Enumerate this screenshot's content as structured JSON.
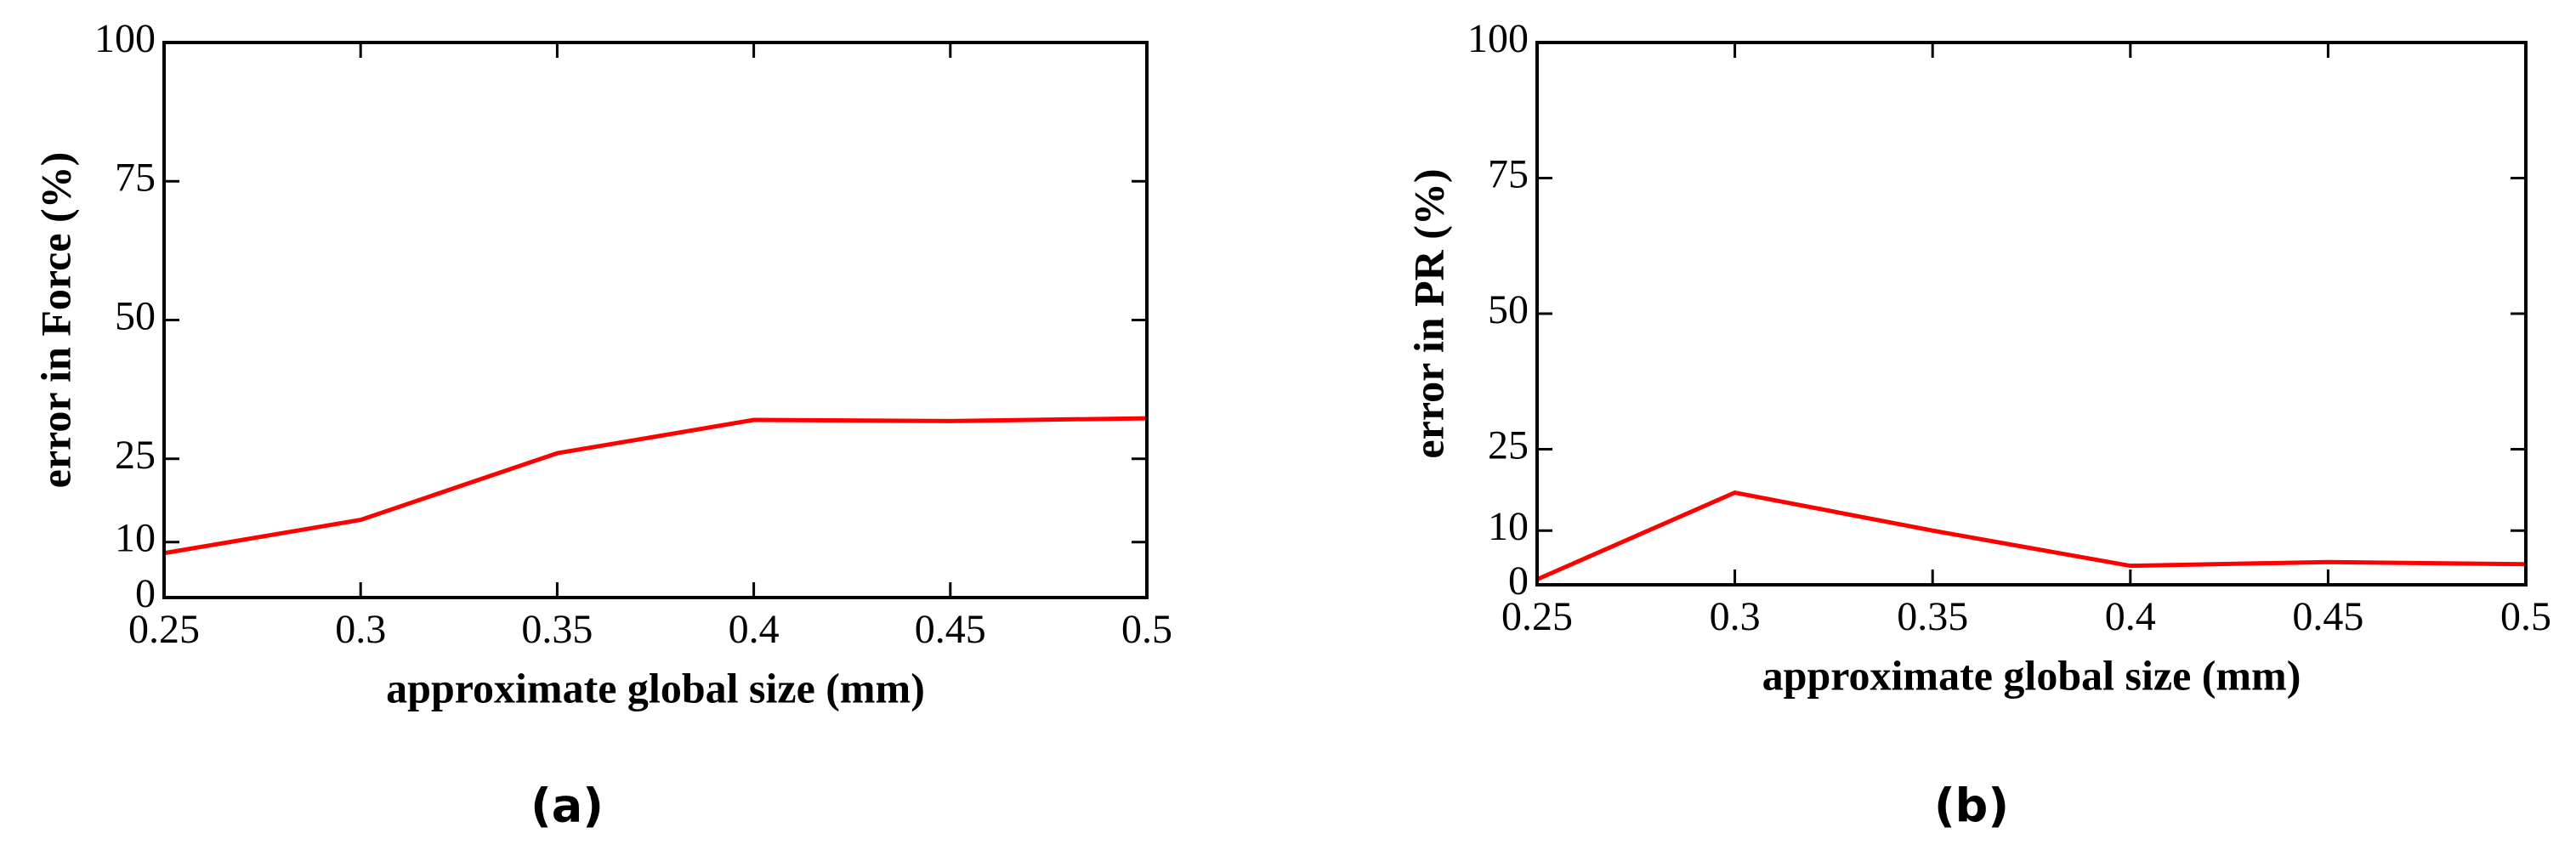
{
  "chart_data": [
    {
      "type": "line",
      "caption": "(a)",
      "xlabel": "approximate global size (mm)",
      "ylabel": "error in Force (%)",
      "x": [
        0.25,
        0.3,
        0.35,
        0.4,
        0.45,
        0.5
      ],
      "series": [
        {
          "color": "#ff0000",
          "values": [
            8,
            14,
            26,
            32,
            31.8,
            32.3
          ]
        }
      ],
      "xlim": [
        0.25,
        0.5
      ],
      "xticks": [
        0.25,
        0.3,
        0.35,
        0.4,
        0.45,
        0.5
      ],
      "ylim": [
        0,
        100
      ],
      "yticks": [
        0,
        10,
        25,
        50,
        75,
        100
      ]
    },
    {
      "type": "line",
      "caption": "(b)",
      "xlabel": "approximate global size (mm)",
      "ylabel": "error in PR (%)",
      "x": [
        0.25,
        0.3,
        0.35,
        0.4,
        0.45,
        0.5
      ],
      "series": [
        {
          "color": "#ff0000",
          "values": [
            1,
            17,
            10,
            3.5,
            4.2,
            3.8
          ]
        }
      ],
      "xlim": [
        0.25,
        0.5
      ],
      "xticks": [
        0.25,
        0.3,
        0.35,
        0.4,
        0.45,
        0.5
      ],
      "ylim": [
        0,
        100
      ],
      "yticks": [
        0,
        10,
        25,
        50,
        75,
        100
      ]
    }
  ]
}
